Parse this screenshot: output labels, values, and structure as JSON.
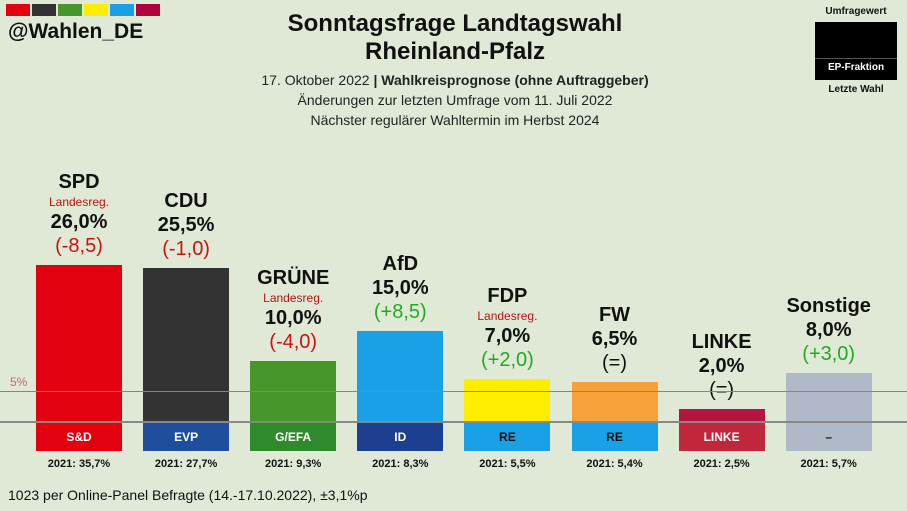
{
  "header": {
    "handle": "@Wahlen_DE",
    "flag_colors": [
      "#e3000f",
      "#333333",
      "#46962b",
      "#ffed00",
      "#1aa0e6",
      "#b1003a"
    ],
    "title_line1": "Sonntagsfrage Landtagswahl",
    "title_line2": "Rheinland-Pfalz",
    "date": "17. Oktober 2022",
    "separator": "|",
    "method": "Wahlkreisprognose (ohne Auftraggeber)",
    "changes_note": "Änderungen zur letzten Umfrage vom 11. Juli 2022",
    "next_election": "Nächster regulärer Wahltermin im Herbst 2024"
  },
  "legend": {
    "top": "Umfragewert",
    "strip": "EP-Fraktion",
    "bottom": "Letzte Wahl"
  },
  "footer": "1023 per Online-Panel Befragte (14.-17.10.2022), ±3,1%p",
  "chart_data": {
    "type": "bar",
    "ylim": [
      0,
      30
    ],
    "threshold": {
      "value": 5,
      "label": "5%"
    },
    "categories": [
      "SPD",
      "CDU",
      "GRÜNE",
      "AfD",
      "FDP",
      "FW",
      "LINKE",
      "Sonstige"
    ],
    "values": [
      26.0,
      25.5,
      10.0,
      15.0,
      7.0,
      6.5,
      2.0,
      8.0
    ],
    "bars": [
      {
        "name": "SPD",
        "value": 26.0,
        "value_label": "26,0%",
        "change": "(-8,5)",
        "change_color": "#cc1111",
        "landesreg": "Landesreg.",
        "fraktion": "S&D",
        "fraktion_color": "#e3000f",
        "fraktion_text_color": "#ffffff",
        "color": "#e3000f",
        "prev": "2021: 35,7%"
      },
      {
        "name": "CDU",
        "value": 25.5,
        "value_label": "25,5%",
        "change": "(-1,0)",
        "change_color": "#cc1111",
        "landesreg": "",
        "fraktion": "EVP",
        "fraktion_color": "#1f4f9c",
        "fraktion_text_color": "#ffffff",
        "color": "#333333",
        "prev": "2021: 27,7%"
      },
      {
        "name": "GRÜNE",
        "value": 10.0,
        "value_label": "10,0%",
        "change": "(-4,0)",
        "change_color": "#cc1111",
        "landesreg": "Landesreg.",
        "fraktion": "G/EFA",
        "fraktion_color": "#2f8a2b",
        "fraktion_text_color": "#ffffff",
        "color": "#46962b",
        "prev": "2021: 9,3%"
      },
      {
        "name": "AfD",
        "value": 15.0,
        "value_label": "15,0%",
        "change": "(+8,5)",
        "change_color": "#22aa22",
        "landesreg": "",
        "fraktion": "ID",
        "fraktion_color": "#1c3f8f",
        "fraktion_text_color": "#ffffff",
        "color": "#1aa0e6",
        "prev": "2021: 8,3%"
      },
      {
        "name": "FDP",
        "value": 7.0,
        "value_label": "7,0%",
        "change": "(+2,0)",
        "change_color": "#22aa22",
        "landesreg": "Landesreg.",
        "fraktion": "RE",
        "fraktion_color": "#1aa0e6",
        "fraktion_text_color": "#111111",
        "color": "#ffed00",
        "prev": "2021: 5,5%"
      },
      {
        "name": "FW",
        "value": 6.5,
        "value_label": "6,5%",
        "change": "(=)",
        "change_color": "#111111",
        "landesreg": "",
        "fraktion": "RE",
        "fraktion_color": "#1aa0e6",
        "fraktion_text_color": "#111111",
        "color": "#f7a13b",
        "prev": "2021: 5,4%"
      },
      {
        "name": "LINKE",
        "value": 2.0,
        "value_label": "2,0%",
        "change": "(=)",
        "change_color": "#111111",
        "landesreg": "",
        "fraktion": "LINKE",
        "fraktion_color": "#c0273a",
        "fraktion_text_color": "#ffffff",
        "color": "#b6153f",
        "prev": "2021: 2,5%"
      },
      {
        "name": "Sonstige",
        "value": 8.0,
        "value_label": "8,0%",
        "change": "(+3,0)",
        "change_color": "#22aa22",
        "landesreg": "",
        "fraktion": "–",
        "fraktion_color": "#b0b9c8",
        "fraktion_text_color": "#111111",
        "color": "#b0b9c8",
        "prev": "2021: 5,7%"
      }
    ]
  }
}
